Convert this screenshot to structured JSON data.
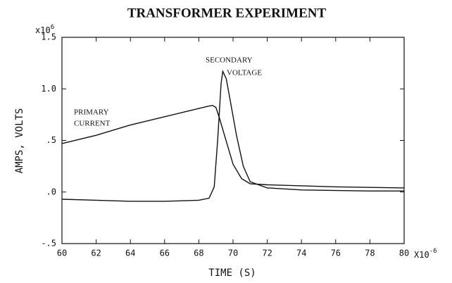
{
  "chart_data": {
    "type": "line",
    "title": "TRANSFORMER EXPERIMENT",
    "x_label": "TIME (S)",
    "y_label": "AMPS, VOLTS",
    "y_multiplier": {
      "base": "x10",
      "exponent": "6"
    },
    "x_multiplier": {
      "base": "X10",
      "exponent": "-6"
    },
    "xlim": [
      60,
      80
    ],
    "xticks": [
      60,
      62,
      64,
      66,
      68,
      70,
      72,
      74,
      76,
      78,
      80
    ],
    "ylim": [
      -0.5,
      1.5
    ],
    "yticks": [
      {
        "value": -0.5,
        "label": "-.5"
      },
      {
        "value": 0,
        "label": ".0"
      },
      {
        "value": 0.5,
        "label": ".5"
      },
      {
        "value": 1,
        "label": "1.0"
      },
      1.5
    ],
    "annotations": [
      {
        "lines": [
          "PRIMARY",
          "CURRENT"
        ]
      },
      {
        "lines": [
          "SECONDARY",
          "VOLTAGE"
        ]
      }
    ],
    "series": [
      {
        "color": "#111111",
        "x": [
          60,
          61,
          62,
          63,
          64,
          65,
          66,
          67,
          68,
          68.5,
          68.8,
          69,
          69.2,
          69.5,
          70,
          70.5,
          71,
          72,
          74,
          76,
          78,
          80
        ],
        "values": [
          0.47,
          0.51,
          0.55,
          0.6,
          0.65,
          0.69,
          0.73,
          0.77,
          0.81,
          0.83,
          0.84,
          0.82,
          0.72,
          0.55,
          0.27,
          0.13,
          0.08,
          0.07,
          0.06,
          0.05,
          0.045,
          0.04
        ]
      },
      {
        "color": "#111111",
        "x": [
          60,
          62,
          64,
          66,
          68,
          68.6,
          68.9,
          69.1,
          69.3,
          69.4,
          69.6,
          69.8,
          70.2,
          70.6,
          71,
          72,
          74,
          76,
          78,
          80
        ],
        "values": [
          -0.07,
          -0.08,
          -0.09,
          -0.09,
          -0.08,
          -0.06,
          0.05,
          0.5,
          1.05,
          1.17,
          1.1,
          0.92,
          0.55,
          0.25,
          0.1,
          0.04,
          0.02,
          0.015,
          0.01,
          0.01
        ]
      }
    ]
  }
}
